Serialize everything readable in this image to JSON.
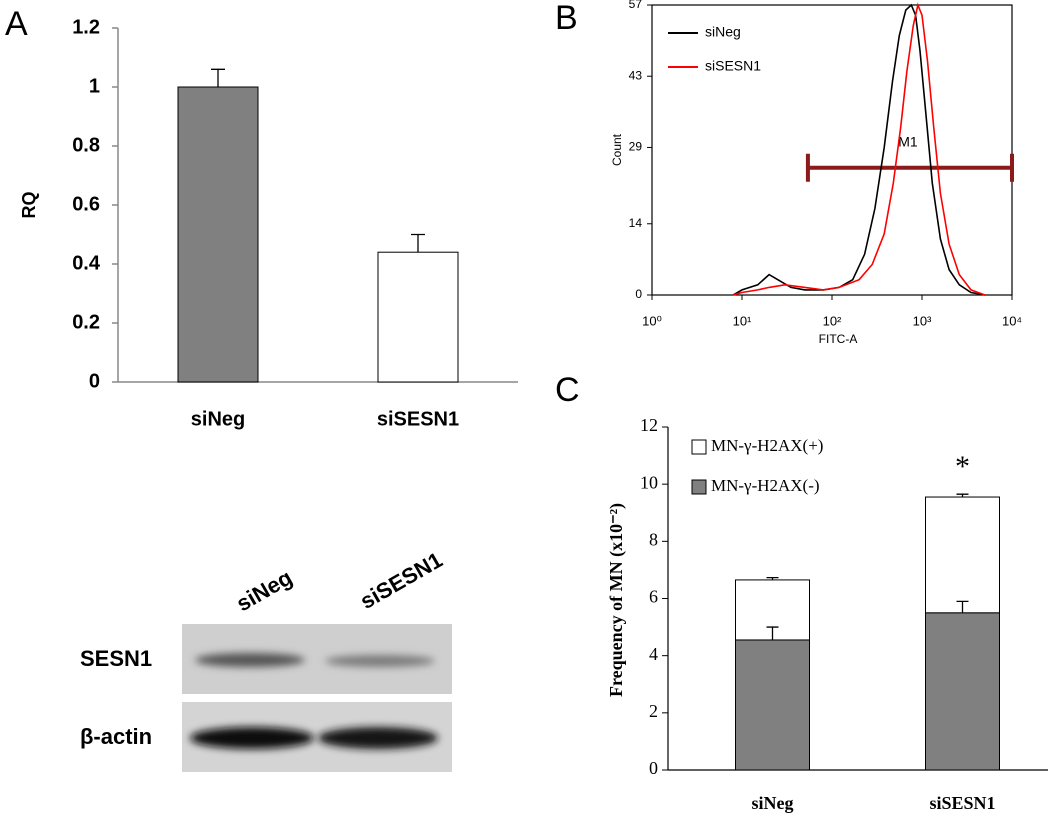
{
  "chart_data": [
    {
      "type": "bar",
      "panel": "A",
      "ylabel": "RQ",
      "categories": [
        "siNeg",
        "siSESN1"
      ],
      "values": [
        1.0,
        0.44
      ],
      "errors": [
        0.06,
        0.06
      ],
      "colors": [
        "#808080",
        "#ffffff"
      ],
      "ylim": [
        0,
        1.2
      ],
      "yticks": [
        0,
        0.2,
        0.4,
        0.6,
        0.8,
        1,
        1.2
      ]
    },
    {
      "type": "line",
      "panel": "B",
      "xlabel": "FITC-A",
      "ylabel": "Count",
      "xscale": "log",
      "xlim": [
        1,
        10000
      ],
      "xticks": [
        {
          "value": 1,
          "label": "10⁰"
        },
        {
          "value": 10,
          "label": "10¹"
        },
        {
          "value": 100,
          "label": "10²"
        },
        {
          "value": 1000,
          "label": "10³"
        },
        {
          "value": 10000,
          "label": "10⁴"
        }
      ],
      "ylim": [
        0,
        57
      ],
      "yticks": [
        0,
        14,
        29,
        43,
        57
      ],
      "series": [
        {
          "name": "siNeg",
          "color": "#000000",
          "x": [
            8,
            10,
            15,
            20,
            25,
            35,
            50,
            80,
            120,
            170,
            230,
            300,
            380,
            470,
            560,
            660,
            760,
            850,
            950,
            1100,
            1300,
            1600,
            2000,
            2600,
            3500,
            5000
          ],
          "values": [
            0,
            1,
            2,
            4,
            3,
            1.5,
            1,
            1,
            1.5,
            3,
            8,
            17,
            29,
            42,
            51,
            56,
            57,
            55,
            48,
            36,
            22,
            11,
            5,
            2,
            0.5,
            0
          ]
        },
        {
          "name": "siSESN1",
          "color": "#ff0000",
          "x": [
            8,
            10,
            15,
            20,
            30,
            50,
            80,
            120,
            200,
            280,
            380,
            480,
            580,
            680,
            800,
            900,
            1000,
            1150,
            1350,
            1600,
            2000,
            2600,
            3500,
            5000
          ],
          "values": [
            0,
            0.5,
            1,
            1.5,
            2,
            1.5,
            1,
            1.5,
            3,
            6,
            12,
            22,
            33,
            44,
            53,
            57,
            55,
            46,
            33,
            20,
            10,
            4,
            1,
            0
          ]
        }
      ],
      "gate": {
        "label": "M1",
        "range": [
          54,
          10000
        ],
        "y": 25,
        "color": "#8b1a1a"
      }
    },
    {
      "type": "stacked-bar",
      "panel": "C",
      "ylabel": "Frequency of MN (x10⁻²)",
      "categories": [
        "siNeg",
        "siSESN1"
      ],
      "ylim": [
        0,
        12
      ],
      "yticks": [
        0,
        2,
        4,
        6,
        8,
        10,
        12
      ],
      "series": [
        {
          "name": "MN-γ-H2AX(-)",
          "color": "#808080",
          "values": [
            4.55,
            5.5
          ],
          "errors": [
            0.45,
            0.4
          ]
        },
        {
          "name": "MN-γ-H2AX(+)",
          "color": "#ffffff",
          "values": [
            2.1,
            4.05
          ],
          "errors": [
            0.08,
            0.1
          ]
        }
      ],
      "annotations": [
        {
          "text": "*",
          "category": "siSESN1"
        }
      ]
    }
  ],
  "blot": {
    "lanes": [
      "siNeg",
      "siSESN1"
    ],
    "rows": [
      "SESN1",
      "β-actin"
    ]
  }
}
